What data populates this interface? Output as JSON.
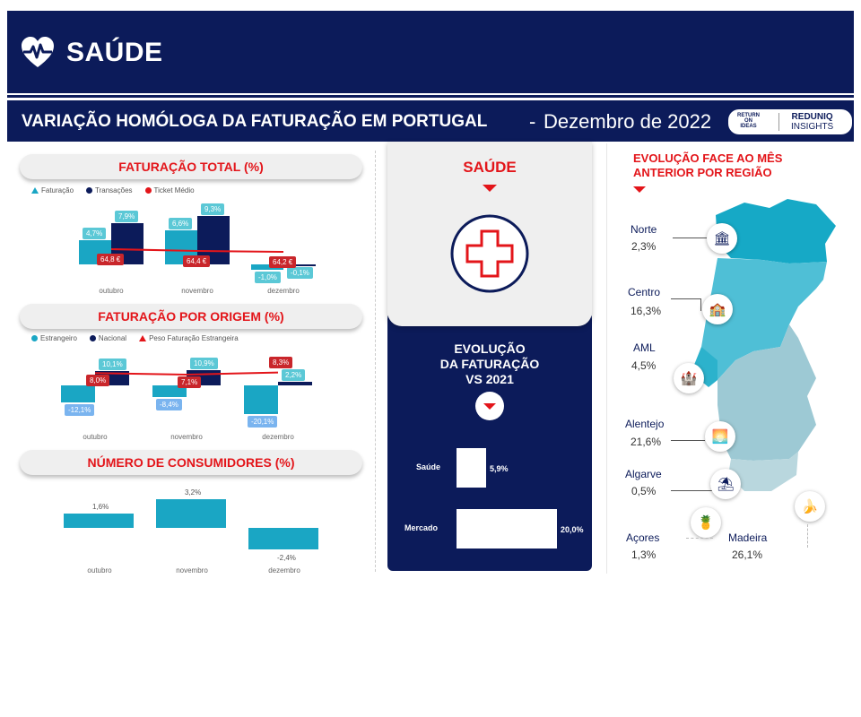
{
  "header": {
    "title": "SAÚDE",
    "subtitle": "VARIAÇÃO HOMÓLOGA DA FATURAÇÃO EM PORTUGAL",
    "date_sep": "-",
    "date": "Dezembro de 2022",
    "logo1": [
      "RETURN",
      "ON",
      "IDEAS"
    ],
    "logo2": [
      "REDUNIQ",
      "INSIGHTS"
    ]
  },
  "faturacao_total": {
    "title": "FATURAÇÃO TOTAL (%)",
    "legend": [
      "Faturação",
      "Transações",
      "Ticket Médio"
    ]
  },
  "faturacao_origem": {
    "title": "FATURAÇÃO POR ORIGEM (%)",
    "legend": [
      "Estrangeiro",
      "Nacional",
      "Peso Faturação Estrangeira"
    ]
  },
  "consumidores": {
    "title": "NÚMERO DE CONSUMIDORES (%)"
  },
  "middle": {
    "title": "SAÚDE",
    "evo_title": [
      "EVOLUÇÃO",
      "DA FATURAÇÃO",
      "VS 2021"
    ]
  },
  "regions": {
    "title": [
      "EVOLUÇÃO FACE AO MÊS",
      "ANTERIOR POR REGIÃO"
    ],
    "items": [
      {
        "name": "Norte",
        "value": "2,3%"
      },
      {
        "name": "Centro",
        "value": "16,3%"
      },
      {
        "name": "AML",
        "value": "4,5%"
      },
      {
        "name": "Alentejo",
        "value": "21,6%"
      },
      {
        "name": "Algarve",
        "value": "0,5%"
      },
      {
        "name": "Açores",
        "value": "1,3%"
      },
      {
        "name": "Madeira",
        "value": "26,1%"
      }
    ]
  },
  "colors": {
    "navy": "#0c1b5a",
    "teal": "#1aa6c4",
    "red": "#e3151a"
  },
  "chart_data": [
    {
      "type": "bar",
      "title": "FATURAÇÃO TOTAL (%)",
      "categories": [
        "outubro",
        "novembro",
        "dezembro"
      ],
      "series": [
        {
          "name": "Faturação",
          "values": [
            4.7,
            6.6,
            -1.0
          ],
          "labels": [
            "4,7%",
            "6,6%",
            "-1,0%"
          ]
        },
        {
          "name": "Transações",
          "values": [
            7.9,
            9.3,
            -0.1
          ],
          "labels": [
            "7,9%",
            "9,3%",
            "-0,1%"
          ]
        },
        {
          "name": "Ticket Médio",
          "values": [
            64.8,
            64.4,
            64.2
          ],
          "labels": [
            "64,8 €",
            "64,4 €",
            "64,2 €"
          ]
        }
      ]
    },
    {
      "type": "bar",
      "title": "FATURAÇÃO POR ORIGEM (%)",
      "categories": [
        "outubro",
        "novembro",
        "dezembro"
      ],
      "series": [
        {
          "name": "Estrangeiro",
          "values": [
            -12.1,
            -8.4,
            -20.1
          ],
          "labels": [
            "-12,1%",
            "-8,4%",
            "-20,1%"
          ]
        },
        {
          "name": "Nacional",
          "values": [
            10.1,
            10.9,
            2.2
          ],
          "labels": [
            "10,1%",
            "10,9%",
            "2,2%"
          ]
        },
        {
          "name": "Peso Faturação Estrangeira",
          "values": [
            8.0,
            7.1,
            8.3
          ],
          "labels": [
            "8,0%",
            "7,1%",
            "8,3%"
          ]
        }
      ]
    },
    {
      "type": "bar",
      "title": "NÚMERO DE CONSUMIDORES (%)",
      "categories": [
        "outubro",
        "novembro",
        "dezembro"
      ],
      "values": [
        1.6,
        3.2,
        -2.4
      ],
      "labels": [
        "1,6%",
        "3,2%",
        "-2,4%"
      ]
    },
    {
      "type": "bar",
      "title": "EVOLUÇÃO DA FATURAÇÃO VS 2021",
      "categories": [
        "Saúde",
        "Mercado"
      ],
      "values": [
        5.9,
        20.0
      ],
      "labels": [
        "5,9%",
        "20,0%"
      ]
    }
  ]
}
